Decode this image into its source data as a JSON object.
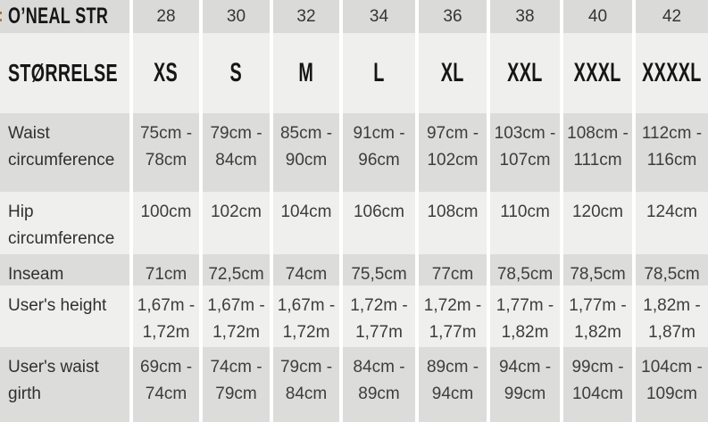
{
  "accent_colon": ":",
  "brand_label": "O’NEAL STR",
  "columns": [
    "28",
    "30",
    "32",
    "34",
    "36",
    "38",
    "40",
    "42"
  ],
  "size_row": {
    "label": "STØRRELSE",
    "values": [
      "XS",
      "S",
      "M",
      "L",
      "XL",
      "XXL",
      "XXXL",
      "XXXXL"
    ]
  },
  "rows": [
    {
      "label": "Waist circumference",
      "values": [
        "75cm - 78cm",
        "79cm - 84cm",
        "85cm - 90cm",
        "91cm - 96cm",
        "97cm - 102cm",
        "103cm - 107cm",
        "108cm - 111cm",
        "112cm - 116cm"
      ]
    },
    {
      "label": "Hip circumference",
      "values": [
        "100cm",
        "102cm",
        "104cm",
        "106cm",
        "108cm",
        "110cm",
        "120cm",
        "124cm"
      ]
    },
    {
      "label": "Inseam",
      "values": [
        "71cm",
        "72,5cm",
        "74cm",
        "75,5cm",
        "77cm",
        "78,5cm",
        "78,5cm",
        "78,5cm"
      ]
    },
    {
      "label": "User's height",
      "values": [
        "1,67m - 1,72m",
        "1,67m - 1,72m",
        "1,67m - 1,72m",
        "1,72m - 1,77m",
        "1,72m - 1,77m",
        "1,77m - 1,82m",
        "1,77m - 1,82m",
        "1,82m - 1,87m"
      ]
    },
    {
      "label": "User's waist girth",
      "values": [
        "69cm - 74cm",
        "74cm - 79cm",
        "79cm - 84cm",
        "84cm - 89cm",
        "89cm - 94cm",
        "94cm - 99cm",
        "99cm - 104cm",
        "104cm - 109cm"
      ]
    }
  ],
  "colors": {
    "row_header_bg": "#dadad8",
    "row_gray_bg": "#dcdcda",
    "row_light_bg": "#efefee",
    "separator": "#ffffff",
    "header_text": "#161616",
    "value_text": "#3c3d3d",
    "accent_colon": "#b5732c"
  }
}
